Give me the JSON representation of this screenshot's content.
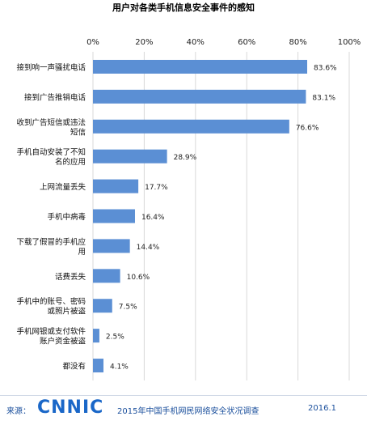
{
  "chart_data": {
    "type": "bar",
    "orientation": "horizontal",
    "title": "用户对各类手机信息安全事件的感知",
    "xlim": [
      0,
      100
    ],
    "x_ticks": [
      "0%",
      "20%",
      "40%",
      "60%",
      "80%",
      "100%"
    ],
    "grid": true,
    "bar_color": "#5b8fd4",
    "categories": [
      [
        "接到响一声骚扰电话"
      ],
      [
        "接到广告推销电话"
      ],
      [
        "收到广告短信或违法",
        "短信"
      ],
      [
        "手机自动安装了不知",
        "名的应用"
      ],
      [
        "上网流量丢失"
      ],
      [
        "手机中病毒"
      ],
      [
        "下载了假冒的手机应",
        "用"
      ],
      [
        "话费丢失"
      ],
      [
        "手机中的账号、密码",
        "或照片被盗"
      ],
      [
        "手机网银或支付软件",
        "账户资金被盗"
      ],
      [
        "都没有"
      ]
    ],
    "values": [
      83.6,
      83.1,
      76.6,
      28.9,
      17.7,
      16.4,
      14.4,
      10.6,
      7.5,
      2.5,
      4.1
    ],
    "value_labels": [
      "83.6%",
      "83.1%",
      "76.6%",
      "28.9%",
      "17.7%",
      "16.4%",
      "14.4%",
      "10.6%",
      "7.5%",
      "2.5%",
      "4.1%"
    ]
  },
  "footer": {
    "source_label": "来源：",
    "logo_text": "CNNIC",
    "survey_name": "2015年中国手机网民网络安全状况调查",
    "date": "2016.1"
  }
}
